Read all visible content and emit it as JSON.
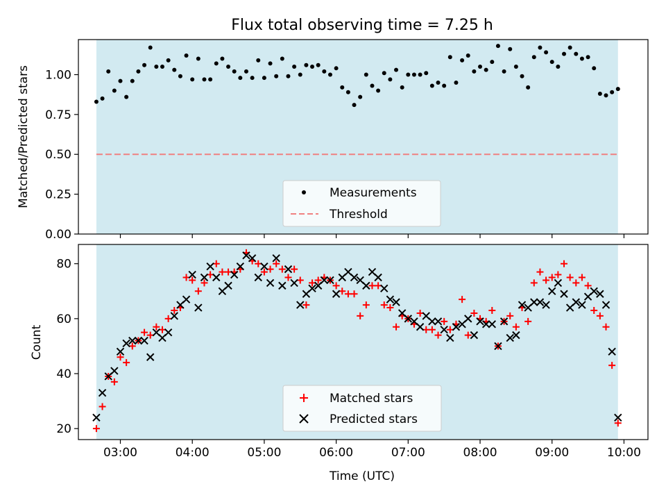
{
  "chart_data": [
    {
      "type": "scatter",
      "title": "Flux total observing time = 7.25 h",
      "xlabel": "",
      "ylabel": "Matched/Predicted stars",
      "xlim": [
        "02:25",
        "10:20"
      ],
      "ylim": [
        0,
        1.22
      ],
      "xticks": [
        "03:00",
        "04:00",
        "05:00",
        "06:00",
        "07:00",
        "08:00",
        "09:00",
        "10:00"
      ],
      "yticks": [
        "0.00",
        "0.25",
        "0.50",
        "0.75",
        "1.00"
      ],
      "observing_window": {
        "start": "02:40",
        "end": "09:55",
        "color": "#add8e6"
      },
      "threshold": {
        "label": "Threshold",
        "value": 0.5,
        "color": "#f08080",
        "style": "dashed"
      },
      "legend": {
        "position": "bottom-center",
        "entries": [
          "Measurements",
          "Threshold"
        ]
      },
      "series": [
        {
          "name": "Measurements",
          "marker": "dot",
          "color": "#000000",
          "x": [
            "02:40",
            "02:45",
            "02:50",
            "02:55",
            "03:00",
            "03:05",
            "03:10",
            "03:15",
            "03:20",
            "03:25",
            "03:30",
            "03:35",
            "03:40",
            "03:45",
            "03:50",
            "03:55",
            "04:00",
            "04:05",
            "04:10",
            "04:15",
            "04:20",
            "04:25",
            "04:30",
            "04:35",
            "04:40",
            "04:45",
            "04:50",
            "04:55",
            "05:00",
            "05:05",
            "05:10",
            "05:15",
            "05:20",
            "05:25",
            "05:30",
            "05:35",
            "05:40",
            "05:45",
            "05:50",
            "05:55",
            "06:00",
            "06:05",
            "06:10",
            "06:15",
            "06:20",
            "06:25",
            "06:30",
            "06:35",
            "06:40",
            "06:45",
            "06:50",
            "06:55",
            "07:00",
            "07:05",
            "07:10",
            "07:15",
            "07:20",
            "07:25",
            "07:30",
            "07:35",
            "07:40",
            "07:45",
            "07:50",
            "07:55",
            "08:00",
            "08:05",
            "08:10",
            "08:15",
            "08:20",
            "08:25",
            "08:30",
            "08:35",
            "08:40",
            "08:45",
            "08:50",
            "08:55",
            "09:00",
            "09:05",
            "09:10",
            "09:15",
            "09:20",
            "09:25",
            "09:30",
            "09:35",
            "09:40",
            "09:45",
            "09:50",
            "09:55"
          ],
          "y": [
            0.83,
            0.85,
            1.02,
            0.9,
            0.96,
            0.86,
            0.96,
            1.02,
            1.06,
            1.17,
            1.05,
            1.05,
            1.09,
            1.03,
            0.99,
            1.12,
            0.97,
            1.1,
            0.97,
            0.97,
            1.07,
            1.1,
            1.05,
            1.02,
            0.98,
            1.02,
            0.98,
            1.09,
            0.98,
            1.07,
            0.99,
            1.1,
            0.99,
            1.05,
            1.0,
            1.06,
            1.05,
            1.06,
            1.02,
            1.0,
            1.04,
            0.92,
            0.89,
            0.81,
            0.86,
            1.0,
            0.93,
            0.9,
            1.01,
            0.97,
            1.03,
            0.92,
            1.0,
            1.0,
            1.0,
            1.01,
            0.93,
            0.95,
            0.93,
            1.11,
            0.95,
            1.09,
            1.12,
            1.02,
            1.05,
            1.03,
            1.08,
            1.18,
            1.02,
            1.16,
            1.05,
            0.99,
            0.92,
            1.11,
            1.17,
            1.14,
            1.08,
            1.05,
            1.13,
            1.17,
            1.13,
            1.1,
            1.11,
            1.04,
            0.88,
            0.87,
            0.89,
            0.91
          ]
        }
      ]
    },
    {
      "type": "scatter",
      "title": "",
      "xlabel": "Time (UTC)",
      "ylabel": "Count",
      "xlim": [
        "02:25",
        "10:20"
      ],
      "ylim": [
        16,
        87
      ],
      "xticks": [
        "03:00",
        "04:00",
        "05:00",
        "06:00",
        "07:00",
        "08:00",
        "09:00",
        "10:00"
      ],
      "yticks": [
        "20",
        "40",
        "60",
        "80"
      ],
      "observing_window": {
        "start": "02:40",
        "end": "09:55",
        "color": "#add8e6"
      },
      "legend": {
        "position": "bottom-center",
        "entries": [
          "Matched stars",
          "Predicted stars"
        ]
      },
      "series": [
        {
          "name": "Matched stars",
          "marker": "plus",
          "color": "#ff0000",
          "x": [
            "02:40",
            "02:45",
            "02:50",
            "02:55",
            "03:00",
            "03:05",
            "03:10",
            "03:15",
            "03:20",
            "03:25",
            "03:30",
            "03:35",
            "03:40",
            "03:45",
            "03:50",
            "03:55",
            "04:00",
            "04:05",
            "04:10",
            "04:15",
            "04:20",
            "04:25",
            "04:30",
            "04:35",
            "04:40",
            "04:45",
            "04:50",
            "04:55",
            "05:00",
            "05:05",
            "05:10",
            "05:15",
            "05:20",
            "05:25",
            "05:30",
            "05:35",
            "05:40",
            "05:45",
            "05:50",
            "05:55",
            "06:00",
            "06:05",
            "06:10",
            "06:15",
            "06:20",
            "06:25",
            "06:30",
            "06:35",
            "06:40",
            "06:45",
            "06:50",
            "06:55",
            "07:00",
            "07:05",
            "07:10",
            "07:15",
            "07:20",
            "07:25",
            "07:30",
            "07:35",
            "07:40",
            "07:45",
            "07:50",
            "07:55",
            "08:00",
            "08:05",
            "08:10",
            "08:15",
            "08:20",
            "08:25",
            "08:30",
            "08:35",
            "08:40",
            "08:45",
            "08:50",
            "08:55",
            "09:00",
            "09:05",
            "09:10",
            "09:15",
            "09:20",
            "09:25",
            "09:30",
            "09:35",
            "09:40",
            "09:45",
            "09:50",
            "09:55"
          ],
          "y": [
            20,
            28,
            39,
            37,
            46,
            44,
            50,
            52,
            55,
            54,
            57,
            56,
            60,
            63,
            64,
            75,
            74,
            70,
            73,
            76,
            80,
            77,
            77,
            77,
            78,
            84,
            81,
            80,
            77,
            78,
            80,
            78,
            75,
            78,
            74,
            65,
            73,
            74,
            75,
            74,
            72,
            70,
            69,
            69,
            61,
            65,
            72,
            72,
            65,
            64,
            57,
            61,
            60,
            58,
            62,
            56,
            56,
            54,
            59,
            56,
            58,
            67,
            54,
            62,
            60,
            59,
            63,
            50,
            59,
            61,
            57,
            64,
            59,
            73,
            77,
            74,
            75,
            76,
            80,
            75,
            73,
            75,
            72,
            63,
            61,
            57,
            43,
            22
          ]
        },
        {
          "name": "Predicted stars",
          "marker": "x",
          "color": "#000000",
          "x": [
            "02:40",
            "02:45",
            "02:50",
            "02:55",
            "03:00",
            "03:05",
            "03:10",
            "03:15",
            "03:20",
            "03:25",
            "03:30",
            "03:35",
            "03:40",
            "03:45",
            "03:50",
            "03:55",
            "04:00",
            "04:05",
            "04:10",
            "04:15",
            "04:20",
            "04:25",
            "04:30",
            "04:35",
            "04:40",
            "04:45",
            "04:50",
            "04:55",
            "05:00",
            "05:05",
            "05:10",
            "05:15",
            "05:20",
            "05:25",
            "05:30",
            "05:35",
            "05:40",
            "05:45",
            "05:50",
            "05:55",
            "06:00",
            "06:05",
            "06:10",
            "06:15",
            "06:20",
            "06:25",
            "06:30",
            "06:35",
            "06:40",
            "06:45",
            "06:50",
            "06:55",
            "07:00",
            "07:05",
            "07:10",
            "07:15",
            "07:20",
            "07:25",
            "07:30",
            "07:35",
            "07:40",
            "07:45",
            "07:50",
            "07:55",
            "08:00",
            "08:05",
            "08:10",
            "08:15",
            "08:20",
            "08:25",
            "08:30",
            "08:35",
            "08:40",
            "08:45",
            "08:50",
            "08:55",
            "09:00",
            "09:05",
            "09:10",
            "09:15",
            "09:20",
            "09:25",
            "09:30",
            "09:35",
            "09:40",
            "09:45",
            "09:50",
            "09:55"
          ],
          "y": [
            24,
            33,
            39,
            41,
            48,
            51,
            52,
            52,
            52,
            46,
            55,
            53,
            55,
            61,
            65,
            67,
            76,
            64,
            75,
            79,
            75,
            70,
            72,
            76,
            79,
            83,
            82,
            75,
            79,
            73,
            82,
            72,
            78,
            73,
            65,
            69,
            71,
            72,
            74,
            74,
            69,
            75,
            77,
            75,
            74,
            72,
            77,
            75,
            71,
            67,
            66,
            62,
            60,
            59,
            57,
            61,
            59,
            59,
            56,
            53,
            57,
            58,
            60,
            54,
            59,
            58,
            58,
            50,
            59,
            53,
            54,
            65,
            64,
            66,
            66,
            65,
            70,
            73,
            69,
            64,
            66,
            65,
            68,
            70,
            69,
            65,
            48,
            24
          ]
        }
      ]
    }
  ]
}
